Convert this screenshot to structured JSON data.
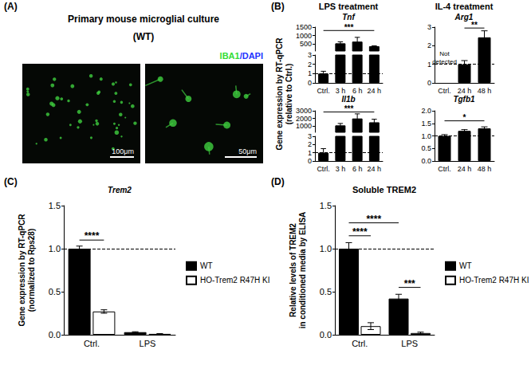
{
  "panels": {
    "a": {
      "label": "(A)",
      "title": "Primary mouse microglial culture",
      "subtitle": "(WT)",
      "stain": [
        {
          "text": "IBA1",
          "color": "#33dd33"
        },
        {
          "text": "/DAPI",
          "color": "#2233ff"
        }
      ],
      "scale_bars": [
        "100μm",
        "50μm"
      ]
    },
    "b": {
      "label": "(B)",
      "headers": [
        "LPS treatment",
        "IL-4 treatment"
      ],
      "ylabel": [
        "Gene expression by RT-qPCR",
        "(relative to Ctrl.)"
      ]
    }
  },
  "chart_data": [
    {
      "type": "bar",
      "title": "Tnf",
      "categories": [
        "Ctrl.",
        "3 h",
        "6 h",
        "24 h"
      ],
      "values": [
        1,
        550,
        650,
        380
      ],
      "errors": [
        0.25,
        90,
        250,
        25
      ],
      "color": "#000000",
      "grid": false,
      "y_segments": [
        {
          "ylim": [
            100,
            1500
          ],
          "yticks": [
            500,
            1000,
            1500
          ]
        },
        {
          "ylim": [
            0,
            3
          ],
          "yticks": [
            0,
            1,
            2,
            3
          ]
        }
      ],
      "ref_line": 1,
      "significance": [
        {
          "from": "Ctrl.",
          "to": "24 h",
          "y": 1300,
          "label": "***"
        }
      ]
    },
    {
      "type": "bar",
      "title": "Il1b",
      "categories": [
        "Ctrl.",
        "3 h",
        "6 h",
        "24 h"
      ],
      "values": [
        1,
        1100,
        2000,
        1500
      ],
      "errors": [
        0.5,
        250,
        600,
        400
      ],
      "color": "#000000",
      "grid": false,
      "y_segments": [
        {
          "ylim": [
            200,
            3000
          ],
          "yticks": [
            1000,
            2000,
            3000
          ]
        },
        {
          "ylim": [
            0,
            3
          ],
          "yticks": [
            0,
            1,
            2,
            3
          ]
        }
      ],
      "ref_line": 1,
      "significance": [
        {
          "from": "Ctrl.",
          "to": "24 h",
          "y": 2850,
          "label": "***"
        }
      ]
    },
    {
      "type": "bar",
      "title": "Arg1",
      "categories": [
        "Ctrl.",
        "24 h",
        "48 h"
      ],
      "values": [
        null,
        1,
        2.45
      ],
      "errors": [
        null,
        0.2,
        0.35
      ],
      "color": "#000000",
      "grid": false,
      "ylim": [
        0,
        3
      ],
      "yticks": [
        0,
        1,
        2,
        3
      ],
      "ref_line": 1,
      "annotations": [
        {
          "category": "Ctrl.",
          "text": "Not detected"
        }
      ],
      "significance": [
        {
          "from": "24 h",
          "to": "48 h",
          "y": 2.95,
          "label": "**"
        }
      ]
    },
    {
      "type": "bar",
      "title": "Tgfb1",
      "categories": [
        "Ctrl.",
        "24 h",
        "48 h"
      ],
      "values": [
        1.0,
        1.2,
        1.3
      ],
      "errors": [
        0.05,
        0.05,
        0.06
      ],
      "color": "#000000",
      "grid": false,
      "ylim": [
        0,
        2
      ],
      "yticks": [
        {
          "value": 0,
          "label": "0.0"
        },
        0.5,
        {
          "value": 1,
          "label": "1.0"
        },
        1.5,
        {
          "value": 2,
          "label": "2.0"
        }
      ],
      "ref_line": 1,
      "significance": [
        {
          "from": "Ctrl.",
          "to": "48 h",
          "y": 1.6,
          "label": "*"
        }
      ]
    },
    {
      "type": "bar",
      "panel_label": "(C)",
      "title": "Trem2",
      "ylabel": [
        "Gene expression by RT-qPCR",
        "(normalized to Rps28)"
      ],
      "categories": [
        "Ctrl.",
        "LPS"
      ],
      "series": [
        {
          "name": "WT",
          "color": "#000000",
          "values": [
            1.0,
            0.03
          ],
          "errors": [
            0.03,
            0.005
          ]
        },
        {
          "name": "HO-Trem2 R47H KI",
          "color": "#ffffff",
          "values": [
            0.27,
            0.01
          ],
          "errors": [
            0.02,
            0.003
          ]
        }
      ],
      "ylim": [
        0,
        1.5
      ],
      "yticks": [
        {
          "value": 0,
          "label": "0.0"
        },
        0.5,
        {
          "value": 1,
          "label": "1.0"
        },
        1.5
      ],
      "grid": false,
      "legend": "right",
      "ref_line": 1,
      "significance": [
        {
          "from": [
            "Ctrl.",
            "WT"
          ],
          "to": [
            "Ctrl.",
            "HO-Trem2 R47H KI"
          ],
          "y": 1.1,
          "label": "****"
        }
      ]
    },
    {
      "type": "bar",
      "panel_label": "(D)",
      "title": "Soluble TREM2",
      "ylabel": [
        "Relative levels of TREM2",
        "in conditioned media by ELISA"
      ],
      "categories": [
        "Ctrl.",
        "LPS"
      ],
      "series": [
        {
          "name": "WT",
          "color": "#000000",
          "values": [
            1.0,
            0.42
          ],
          "errors": [
            0.07,
            0.05
          ]
        },
        {
          "name": "HO-Trem2 R47H KI",
          "color": "#ffffff",
          "values": [
            0.1,
            0.02
          ],
          "errors": [
            0.04,
            0.01
          ]
        }
      ],
      "ylim": [
        0,
        1.5
      ],
      "yticks": [
        {
          "value": 0,
          "label": "0.0"
        },
        0.5,
        {
          "value": 1,
          "label": "1.0"
        },
        1.5
      ],
      "grid": false,
      "legend": "right",
      "ref_line": 1,
      "significance": [
        {
          "from": [
            "Ctrl.",
            "WT"
          ],
          "to": [
            "Ctrl.",
            "HO-Trem2 R47H KI"
          ],
          "y": 1.15,
          "label": "****"
        },
        {
          "from": [
            "Ctrl.",
            "WT"
          ],
          "to": [
            "LPS",
            "WT"
          ],
          "y": 1.3,
          "label": "****"
        },
        {
          "from": [
            "LPS",
            "WT"
          ],
          "to": [
            "LPS",
            "HO-Trem2 R47H KI"
          ],
          "y": 0.55,
          "label": "***"
        }
      ]
    }
  ]
}
